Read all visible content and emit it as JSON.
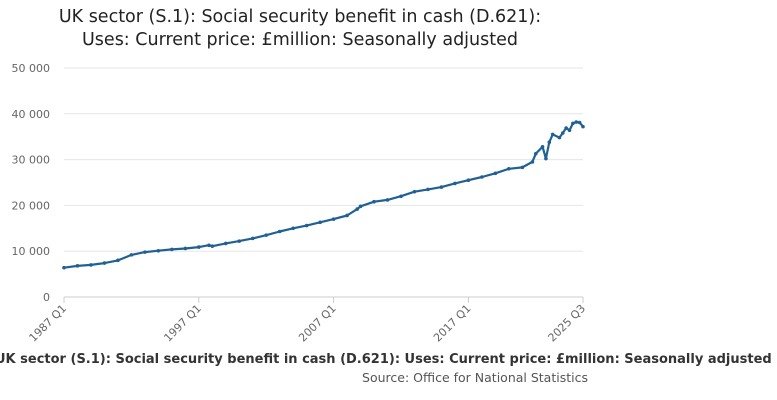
{
  "chart_data": {
    "type": "line",
    "title_line1": "UK sector (S.1): Social security benefit in cash (D.621):",
    "title_line2": "Uses: Current price: £million: Seasonally adjusted",
    "xlabel": "",
    "ylabel": "",
    "legend_label": "UK sector (S.1): Social security benefit in cash (D.621): Uses: Current price: £million: Seasonally adjusted",
    "source_label": "Source: Office for National Statistics",
    "ylim": [
      0,
      50000
    ],
    "y_ticks": [
      0,
      10000,
      20000,
      30000,
      40000,
      50000
    ],
    "y_tick_labels": [
      "0",
      "10 000",
      "20 000",
      "30 000",
      "40 000",
      "50 000"
    ],
    "x_range": [
      "1987 Q1",
      "2025 Q3"
    ],
    "x_ticks": [
      "1987 Q1",
      "1997 Q1",
      "2007 Q1",
      "2017 Q1",
      "2025 Q3"
    ],
    "grid": true,
    "line_color": "#206095",
    "series": [
      {
        "values": [
          [
            "1987 Q1",
            6400
          ],
          [
            "1988 Q1",
            6800
          ],
          [
            "1989 Q1",
            7000
          ],
          [
            "1990 Q1",
            7400
          ],
          [
            "1991 Q1",
            8000
          ],
          [
            "1992 Q1",
            9200
          ],
          [
            "1993 Q1",
            9800
          ],
          [
            "1994 Q1",
            10100
          ],
          [
            "1995 Q1",
            10400
          ],
          [
            "1996 Q1",
            10600
          ],
          [
            "1997 Q1",
            10900
          ],
          [
            "1997 Q4",
            11300
          ],
          [
            "1998 Q1",
            11100
          ],
          [
            "1999 Q1",
            11700
          ],
          [
            "2000 Q1",
            12200
          ],
          [
            "2001 Q1",
            12800
          ],
          [
            "2002 Q1",
            13500
          ],
          [
            "2003 Q1",
            14300
          ],
          [
            "2004 Q1",
            15000
          ],
          [
            "2005 Q1",
            15600
          ],
          [
            "2006 Q1",
            16300
          ],
          [
            "2007 Q1",
            17000
          ],
          [
            "2008 Q1",
            17800
          ],
          [
            "2008 Q4",
            19200
          ],
          [
            "2009 Q1",
            19800
          ],
          [
            "2010 Q1",
            20800
          ],
          [
            "2011 Q1",
            21200
          ],
          [
            "2012 Q1",
            22000
          ],
          [
            "2013 Q1",
            23000
          ],
          [
            "2014 Q1",
            23500
          ],
          [
            "2015 Q1",
            24000
          ],
          [
            "2016 Q1",
            24800
          ],
          [
            "2017 Q1",
            25500
          ],
          [
            "2018 Q1",
            26200
          ],
          [
            "2019 Q1",
            27000
          ],
          [
            "2020 Q1",
            28000
          ],
          [
            "2021 Q1",
            28300
          ],
          [
            "2021 Q4",
            29500
          ],
          [
            "2022 Q1",
            31300
          ],
          [
            "2022 Q3",
            32800
          ],
          [
            "2022 Q4",
            30200
          ],
          [
            "2023 Q1",
            33800
          ],
          [
            "2023 Q2",
            35500
          ],
          [
            "2023 Q4",
            34800
          ],
          [
            "2024 Q1",
            35800
          ],
          [
            "2024 Q2",
            36900
          ],
          [
            "2024 Q3",
            36400
          ],
          [
            "2024 Q4",
            37900
          ],
          [
            "2025 Q1",
            38200
          ],
          [
            "2025 Q2",
            38100
          ],
          [
            "2025 Q3",
            37200
          ]
        ]
      }
    ]
  }
}
